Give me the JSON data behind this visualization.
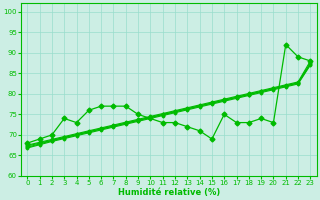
{
  "xlabel": "Humidité relative (%)",
  "background_color": "#cceee4",
  "grid_color": "#99ddcc",
  "line_color": "#00bb00",
  "xlim": [
    -0.5,
    23.5
  ],
  "ylim": [
    60,
    102
  ],
  "yticks": [
    60,
    65,
    70,
    75,
    80,
    85,
    90,
    95,
    100
  ],
  "xticks": [
    0,
    1,
    2,
    3,
    4,
    5,
    6,
    7,
    8,
    9,
    10,
    11,
    12,
    13,
    14,
    15,
    16,
    17,
    18,
    19,
    20,
    21,
    22,
    23
  ],
  "trend_lines": [
    [
      67.5,
      68.2,
      68.9,
      69.6,
      70.3,
      71.0,
      71.7,
      72.4,
      73.1,
      73.8,
      74.5,
      75.2,
      75.9,
      76.6,
      77.3,
      78.0,
      78.7,
      79.4,
      80.1,
      80.8,
      81.5,
      82.2,
      82.9,
      88.0
    ],
    [
      67.3,
      68.0,
      68.7,
      69.4,
      70.1,
      70.8,
      71.5,
      72.2,
      72.9,
      73.6,
      74.3,
      75.0,
      75.7,
      76.4,
      77.1,
      77.8,
      78.5,
      79.2,
      79.9,
      80.6,
      81.3,
      82.0,
      82.7,
      87.5
    ],
    [
      67.0,
      67.8,
      68.6,
      69.3,
      70.0,
      70.7,
      71.4,
      72.1,
      72.8,
      73.5,
      74.2,
      74.9,
      75.6,
      76.3,
      77.0,
      77.7,
      78.4,
      79.1,
      79.8,
      80.5,
      81.2,
      81.9,
      82.6,
      87.2
    ],
    [
      66.8,
      67.6,
      68.4,
      69.1,
      69.8,
      70.5,
      71.2,
      71.9,
      72.6,
      73.3,
      74.0,
      74.7,
      75.4,
      76.1,
      76.8,
      77.5,
      78.2,
      78.9,
      79.6,
      80.3,
      81.0,
      81.7,
      82.4,
      87.0
    ]
  ],
  "data_series": [
    68,
    69,
    70,
    74,
    73,
    76,
    77,
    77,
    77,
    75,
    74,
    73,
    73,
    72,
    71,
    69,
    75,
    73,
    73,
    74,
    73,
    92,
    89,
    88
  ]
}
